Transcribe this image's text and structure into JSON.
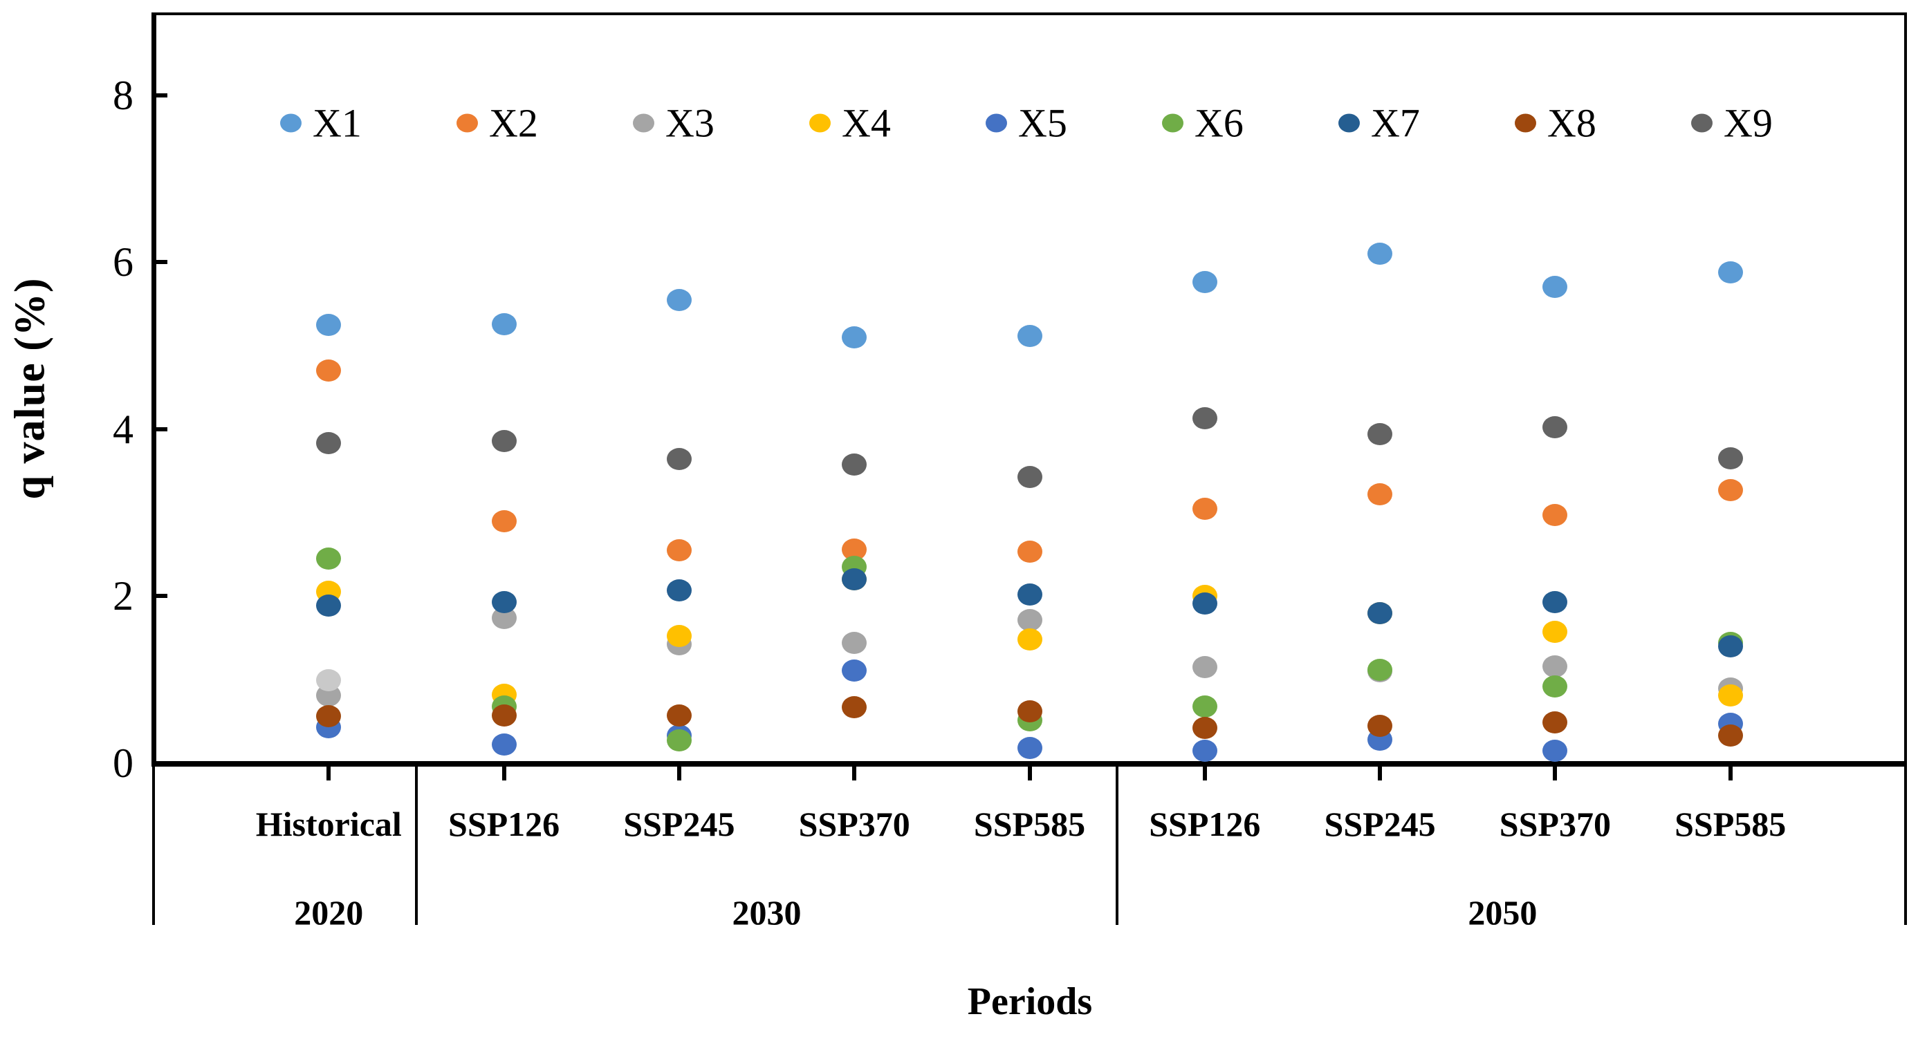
{
  "chart_data": {
    "type": "scatter",
    "title": "",
    "xlabel": "Periods",
    "ylabel": "q value (%)",
    "y_axis": {
      "title": "q value (%)",
      "ticks": [
        0,
        2,
        4,
        6,
        8
      ],
      "range": [
        0,
        8.98
      ],
      "grid": false
    },
    "x_axis": {
      "title": "Periods",
      "range": [
        0,
        10
      ],
      "column_positions": [
        1,
        2,
        3,
        4,
        5,
        6,
        7,
        8,
        9
      ]
    },
    "categories": [
      "Historical",
      "SSP126",
      "SSP245",
      "SSP370",
      "SSP585",
      "SSP126",
      "SSP245",
      "SSP370",
      "SSP585"
    ],
    "groups": [
      {
        "label": "2020",
        "from": 0,
        "to": 0,
        "label_x": 1
      },
      {
        "label": "2030",
        "from": 1,
        "to": 4,
        "label_x": 3.5
      },
      {
        "label": "2050",
        "from": 5,
        "to": 8,
        "label_x": 7.7
      }
    ],
    "group_boundaries_x": [
      1.5,
      5.5
    ],
    "legend_position": "top-inside",
    "series": [
      {
        "name": "X1",
        "color": "#5B9BD5",
        "values": [
          5.25,
          5.26,
          5.55,
          5.1,
          5.12,
          5.76,
          6.1,
          5.7,
          5.88
        ]
      },
      {
        "name": "X2",
        "color": "#ED7D31",
        "values": [
          4.7,
          2.9,
          2.55,
          2.56,
          2.53,
          3.05,
          3.22,
          2.97,
          3.27
        ]
      },
      {
        "name": "X3",
        "color": "#A5A5A5",
        "values": [
          0.81,
          1.74,
          1.42,
          1.44,
          1.71,
          1.15,
          1.1,
          1.16,
          0.89
        ]
      },
      {
        "name": "X4",
        "color": "#FFC000",
        "values": [
          2.05,
          0.82,
          1.52,
          2.2,
          1.48,
          2.0,
          1.8,
          1.57,
          0.81
        ]
      },
      {
        "name": "X5",
        "color": "#4472C4",
        "values": [
          0.43,
          0.22,
          0.33,
          1.11,
          0.18,
          0.15,
          0.28,
          0.15,
          0.47
        ]
      },
      {
        "name": "X6",
        "color": "#70AD47",
        "values": [
          2.45,
          0.68,
          0.27,
          2.35,
          0.51,
          0.68,
          1.12,
          0.92,
          1.44
        ]
      },
      {
        "name": "X7",
        "color": "#255E91",
        "values": [
          1.89,
          1.93,
          2.07,
          2.2,
          2.02,
          1.91,
          1.8,
          1.93,
          1.4
        ]
      },
      {
        "name": "X8",
        "color": "#9E480E",
        "values": [
          0.56,
          0.57,
          0.57,
          0.67,
          0.62,
          0.42,
          0.45,
          0.49,
          0.33
        ]
      },
      {
        "name": "X9",
        "color": "#636363",
        "values": [
          3.83,
          3.86,
          3.64,
          3.58,
          3.43,
          4.13,
          3.94,
          4.02,
          3.65
        ]
      }
    ],
    "extra_points": [
      {
        "category_index": 0,
        "value": 0.99,
        "color": "#C9C9C9",
        "draw_after_series": "X3",
        "note": "unlabeled light-gray dot in Historical column"
      }
    ]
  }
}
